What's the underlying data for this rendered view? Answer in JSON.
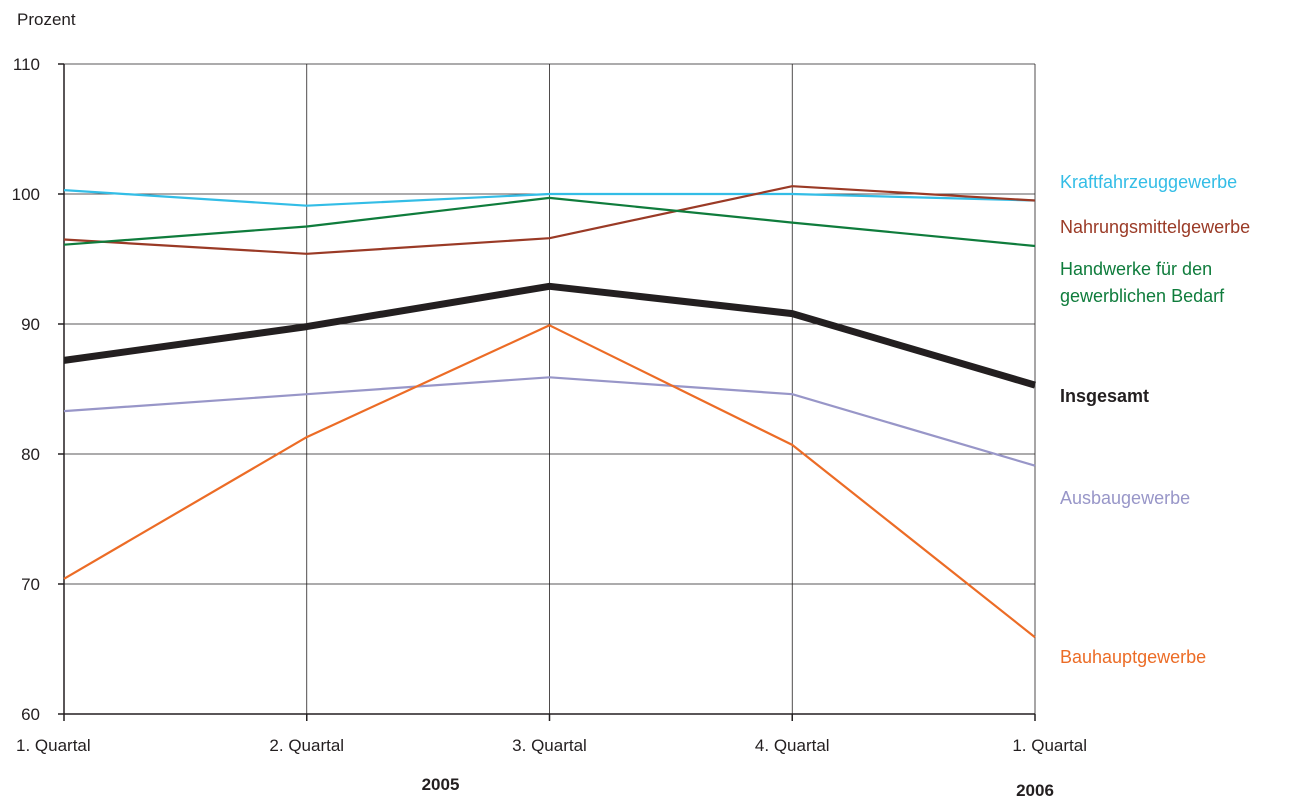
{
  "chart_data": {
    "type": "line",
    "ylabel": "Prozent",
    "ylim": [
      60,
      110
    ],
    "yticks": [
      60,
      70,
      80,
      90,
      100,
      110
    ],
    "grid": true,
    "categories": [
      "1. Quartal",
      "2. Quartal",
      "3. Quartal",
      "4. Quartal",
      "1. Quartal"
    ],
    "year_labels": [
      {
        "label": "2005",
        "category_index": 2
      },
      {
        "label": "2006",
        "category_index": 4
      }
    ],
    "series": [
      {
        "name": "Kraftfahrzeuggewerbe",
        "color": "#33bde6",
        "values": [
          100.3,
          99.1,
          100.0,
          100.0,
          99.5
        ]
      },
      {
        "name": "Nahrungsmittelgewerbe",
        "color": "#9a3a26",
        "values": [
          96.5,
          95.4,
          96.6,
          100.6,
          99.5
        ]
      },
      {
        "name": "Handwerke für den gewerblichen Bedarf",
        "name_lines": [
          "Handwerke für den",
          "gewerblichen Bedarf"
        ],
        "color": "#0f7c3c",
        "values": [
          96.1,
          97.5,
          99.7,
          97.8,
          96.0
        ]
      },
      {
        "name": "Insgesamt",
        "color": "#231f20",
        "values": [
          87.2,
          89.8,
          92.9,
          90.8,
          85.3
        ],
        "bold": true
      },
      {
        "name": "Ausbaugewerbe",
        "color": "#9896c8",
        "values": [
          83.3,
          84.6,
          85.9,
          84.6,
          79.1
        ]
      },
      {
        "name": "Bauhauptgewerbe",
        "color": "#ec6c26",
        "values": [
          70.4,
          81.3,
          89.9,
          80.7,
          65.9
        ]
      }
    ]
  }
}
